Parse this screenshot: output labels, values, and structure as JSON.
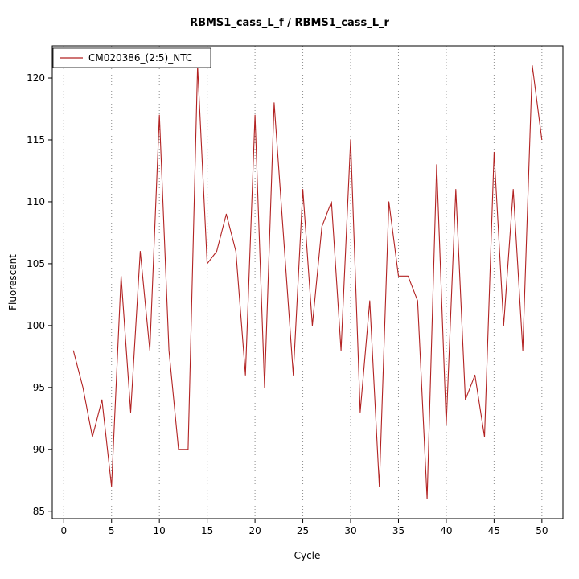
{
  "chart_data": {
    "type": "line",
    "title": "RBMS1_cass_L_f / RBMS1_cass_L_r",
    "xlabel": "Cycle",
    "ylabel": "Fluorescent",
    "xlim": [
      -1.2,
      52.2
    ],
    "ylim": [
      84.4,
      122.6
    ],
    "x_ticks": [
      0,
      5,
      10,
      15,
      20,
      25,
      30,
      35,
      40,
      45,
      50
    ],
    "y_ticks": [
      85,
      90,
      95,
      100,
      105,
      110,
      115,
      120
    ],
    "grid": "vertical-dotted",
    "grid_color": "#8c8c8c",
    "legend": {
      "position": "top-left",
      "entries": [
        {
          "label": "CM020386_(2:5)_NTC",
          "color": "#b22222"
        }
      ]
    },
    "series": [
      {
        "name": "CM020386_(2:5)_NTC",
        "color": "#b22222",
        "x": [
          1,
          2,
          3,
          4,
          5,
          6,
          7,
          8,
          9,
          10,
          11,
          12,
          13,
          14,
          15,
          16,
          17,
          18,
          19,
          20,
          21,
          22,
          23,
          24,
          25,
          26,
          27,
          28,
          29,
          30,
          31,
          32,
          33,
          34,
          35,
          36,
          37,
          38,
          39,
          40,
          41,
          42,
          43,
          44,
          45,
          46,
          47,
          48,
          49,
          50
        ],
        "values": [
          98,
          95,
          91,
          94,
          87,
          104,
          93,
          106,
          98,
          117,
          98,
          90,
          90,
          121,
          105,
          106,
          109,
          106,
          96,
          117,
          95,
          118,
          107,
          96,
          111,
          100,
          108,
          110,
          98,
          115,
          93,
          102,
          87,
          110,
          104,
          104,
          102,
          86,
          113,
          92,
          111,
          94,
          96,
          91,
          114,
          100,
          111,
          98,
          121,
          115
        ]
      }
    ]
  }
}
